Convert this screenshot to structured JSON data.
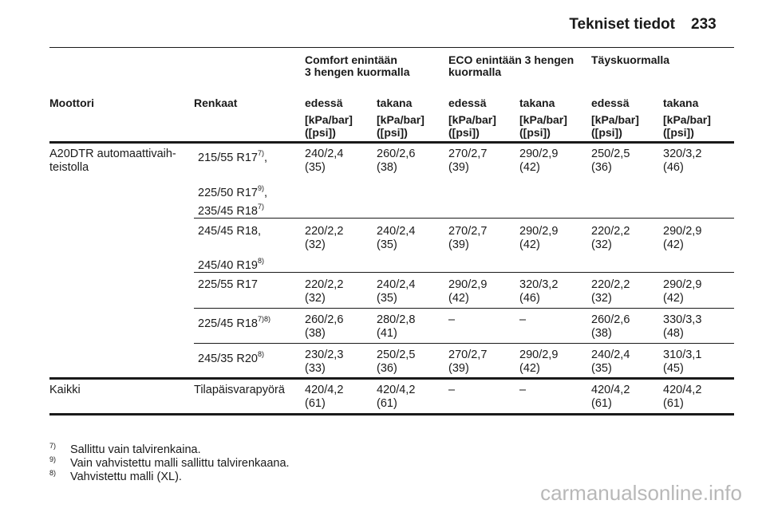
{
  "page": {
    "title": "Tekniset tiedot",
    "number": "233"
  },
  "table": {
    "group_headers": [
      "Comfort enintään\n3 hengen kuormalla",
      "ECO enintään 3 hengen\nkuormalla",
      "Täyskuormalla"
    ],
    "columns": [
      "Moottori",
      "Renkaat",
      "edessä",
      "takana",
      "edessä",
      "takana",
      "edessä",
      "takana"
    ],
    "unit": "[kPa/bar]\n([psi])",
    "engine_a": "A20DTR automaattivaih-\nteistolla",
    "engine_b": "Kaikki",
    "tires": [
      {
        "text": "215/55 R17",
        "sup": "7)",
        "tail": ","
      },
      {
        "text": "225/50 R17",
        "sup": "9)",
        "tail": ","
      },
      {
        "text": "235/45 R18",
        "sup": "7)",
        "tail": ""
      },
      {
        "text": "245/45 R18,",
        "sup": "",
        "tail": ""
      },
      {
        "text": "245/40 R19",
        "sup": "8)",
        "tail": ""
      },
      {
        "text": "225/55 R17",
        "sup": "",
        "tail": ""
      },
      {
        "text": "225/45 R18",
        "sup": "7)8)",
        "tail": ""
      },
      {
        "text": "245/35 R20",
        "sup": "8)",
        "tail": ""
      },
      {
        "text": "Tilapäisvarapyörä",
        "sup": "",
        "tail": ""
      }
    ],
    "values": [
      [
        "240/2,4\n(35)",
        "260/2,6\n(38)",
        "270/2,7\n(39)",
        "290/2,9\n(42)",
        "250/2,5\n(36)",
        "320/3,2\n(46)"
      ],
      [
        "220/2,2\n(32)",
        "240/2,4\n(35)",
        "270/2,7\n(39)",
        "290/2,9\n(42)",
        "220/2,2\n(32)",
        "290/2,9\n(42)"
      ],
      [
        "220/2,2\n(32)",
        "240/2,4\n(35)",
        "290/2,9\n(42)",
        "320/3,2\n(46)",
        "220/2,2\n(32)",
        "290/2,9\n(42)"
      ],
      [
        "260/2,6\n(38)",
        "280/2,8\n(41)",
        "–",
        "–",
        "260/2,6\n(38)",
        "330/3,3\n(48)"
      ],
      [
        "230/2,3\n(33)",
        "250/2,5\n(36)",
        "270/2,7\n(39)",
        "290/2,9\n(42)",
        "240/2,4\n(35)",
        "310/3,1\n(45)"
      ],
      [
        "420/4,2\n(61)",
        "420/4,2\n(61)",
        "–",
        "–",
        "420/4,2\n(61)",
        "420/4,2\n(61)"
      ]
    ]
  },
  "footnotes": [
    {
      "num": "7)",
      "text": "Sallittu vain talvirenkaina."
    },
    {
      "num": "9)",
      "text": "Vain vahvistettu malli sallittu talvirenkaana."
    },
    {
      "num": "8)",
      "text": "Vahvistettu malli (XL)."
    }
  ],
  "watermark": "carmanualsonline.info"
}
